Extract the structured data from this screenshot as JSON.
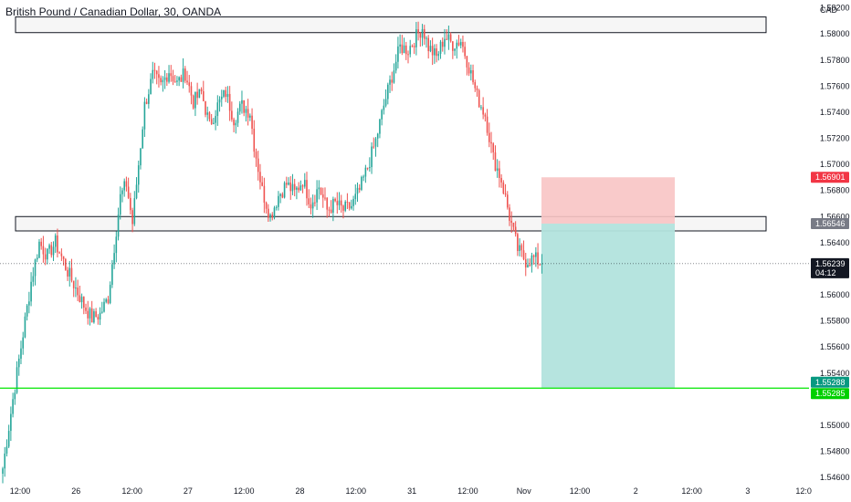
{
  "header": {
    "title": "British Pound / Canadian Dollar, 30, OANDA",
    "currency": "CAD"
  },
  "colors": {
    "up": "#26a69a",
    "down": "#ef5350",
    "support": "#00e600",
    "stop_zone": "#f8c4c4",
    "target_zone": "#b2e3dd",
    "last_price_tag": "#131722"
  },
  "chart_data": {
    "type": "candlestick",
    "symbol": "GBPCAD",
    "timeframe": "30",
    "x_ticks": [
      "12:00",
      "26",
      "12:00",
      "27",
      "12:00",
      "28",
      "12:00",
      "31",
      "12:00",
      "Nov",
      "12:00",
      "2",
      "12:00",
      "3",
      "12:0"
    ],
    "y_ticks": [
      "1.58200",
      "1.58000",
      "1.57800",
      "1.57600",
      "1.57400",
      "1.57200",
      "1.57000",
      "1.56800",
      "1.56600",
      "1.56400",
      "1.56000",
      "1.55800",
      "1.55600",
      "1.55400",
      "1.55000",
      "1.54800",
      "1.54600"
    ],
    "ylim": [
      1.5458,
      1.5826
    ],
    "price_tags": [
      {
        "label": "1.56901",
        "value": 1.56901,
        "color": "#f23645"
      },
      {
        "label": "1.56546",
        "value": 1.56546,
        "color": "#787b86"
      },
      {
        "label": "1.56239",
        "value": 1.56239,
        "color": "#131722",
        "sub": "04:12"
      },
      {
        "label": "1.55288",
        "value": 1.55288,
        "color": "#089981"
      },
      {
        "label": "1.55285",
        "value": 1.55285,
        "color": "#00d000"
      }
    ],
    "zones": [
      {
        "name": "resistance-zone",
        "top": 1.5813,
        "bottom": 1.5801
      },
      {
        "name": "support-resistance-zone",
        "top": 1.566,
        "bottom": 1.5649
      }
    ],
    "position": {
      "type": "short",
      "entry": 1.56546,
      "stop": 1.56901,
      "target": 1.55288
    },
    "support_line": 1.55285,
    "last_price": 1.56239,
    "swings": [
      [
        0,
        1.5467
      ],
      [
        5,
        1.552
      ],
      [
        10,
        1.557
      ],
      [
        14,
        1.561
      ],
      [
        18,
        1.564
      ],
      [
        22,
        1.563
      ],
      [
        26,
        1.564
      ],
      [
        32,
        1.5618
      ],
      [
        36,
        1.5605
      ],
      [
        40,
        1.5592
      ],
      [
        44,
        1.5582
      ],
      [
        48,
        1.5585
      ],
      [
        52,
        1.5598
      ],
      [
        56,
        1.565
      ],
      [
        58,
        1.5675
      ],
      [
        61,
        1.5685
      ],
      [
        64,
        1.5655
      ],
      [
        67,
        1.57
      ],
      [
        70,
        1.5745
      ],
      [
        74,
        1.5768
      ],
      [
        78,
        1.576
      ],
      [
        82,
        1.5772
      ],
      [
        86,
        1.5762
      ],
      [
        90,
        1.577
      ],
      [
        94,
        1.5748
      ],
      [
        98,
        1.5755
      ],
      [
        102,
        1.573
      ],
      [
        106,
        1.5745
      ],
      [
        110,
        1.5755
      ],
      [
        114,
        1.5735
      ],
      [
        118,
        1.5745
      ],
      [
        122,
        1.574
      ],
      [
        124,
        1.5715
      ],
      [
        128,
        1.568
      ],
      [
        132,
        1.566
      ],
      [
        136,
        1.5676
      ],
      [
        140,
        1.5685
      ],
      [
        144,
        1.5678
      ],
      [
        148,
        1.5688
      ],
      [
        152,
        1.567
      ],
      [
        156,
        1.5683
      ],
      [
        160,
        1.5665
      ],
      [
        164,
        1.567
      ],
      [
        168,
        1.5665
      ],
      [
        172,
        1.5668
      ],
      [
        176,
        1.568
      ],
      [
        180,
        1.5698
      ],
      [
        184,
        1.5718
      ],
      [
        188,
        1.5745
      ],
      [
        192,
        1.5768
      ],
      [
        196,
        1.579
      ],
      [
        200,
        1.5788
      ],
      [
        204,
        1.5798
      ],
      [
        207,
        1.5805
      ],
      [
        210,
        1.579
      ],
      [
        214,
        1.5782
      ],
      [
        218,
        1.5798
      ],
      [
        222,
        1.5792
      ],
      [
        226,
        1.5795
      ],
      [
        230,
        1.5775
      ],
      [
        234,
        1.5752
      ],
      [
        238,
        1.5738
      ],
      [
        242,
        1.5705
      ],
      [
        246,
        1.5688
      ],
      [
        250,
        1.566
      ],
      [
        254,
        1.5635
      ],
      [
        258,
        1.5626
      ],
      [
        262,
        1.5628
      ],
      [
        266,
        1.5624
      ]
    ]
  }
}
